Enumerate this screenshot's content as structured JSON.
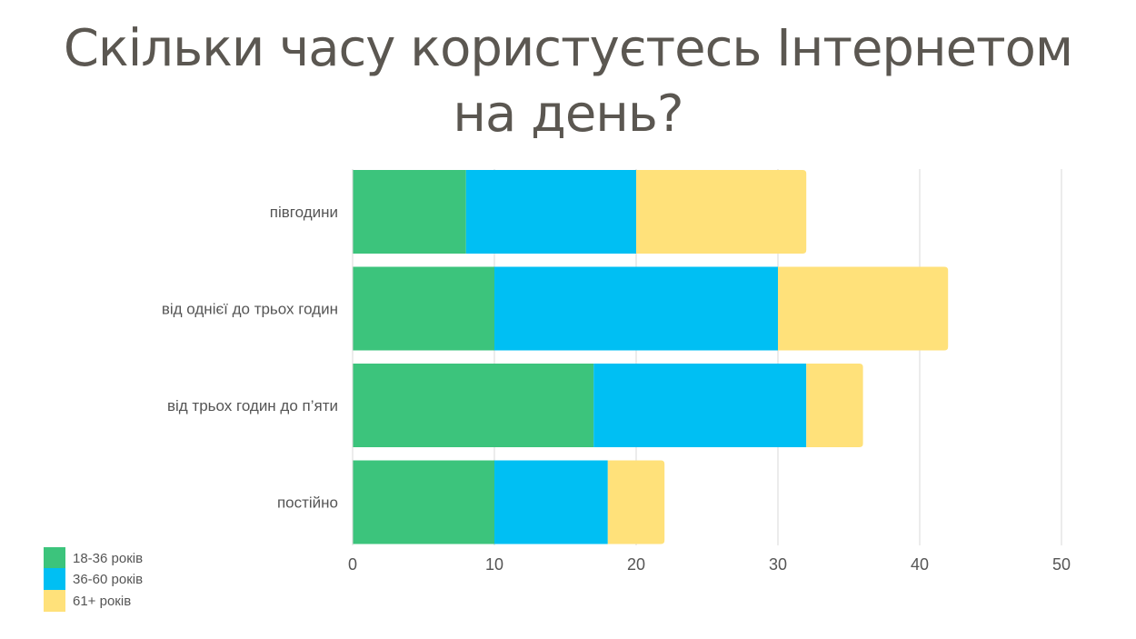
{
  "chart_data": {
    "type": "bar",
    "orientation": "horizontal",
    "stacked": true,
    "title_lines": [
      "Скільки часу користуєтесь Інтернетом",
      "на день?"
    ],
    "categories": [
      "півгодини",
      "від однієї до трьох годин",
      "від трьох годин до п’яти",
      "постійно"
    ],
    "series": [
      {
        "name": "18-36 років",
        "color": "#3cc47c",
        "values": [
          8,
          10,
          17,
          10
        ]
      },
      {
        "name": "36-60 років",
        "color": "#00bff3",
        "values": [
          12,
          20,
          15,
          8
        ]
      },
      {
        "name": "61+ років",
        "color": "#ffe17a",
        "values": [
          12,
          12,
          4,
          4
        ]
      }
    ],
    "xlim": [
      0,
      50
    ],
    "xticks": [
      0,
      10,
      20,
      30,
      40,
      50
    ],
    "grid": "vertical",
    "legend": "bottom-left"
  }
}
